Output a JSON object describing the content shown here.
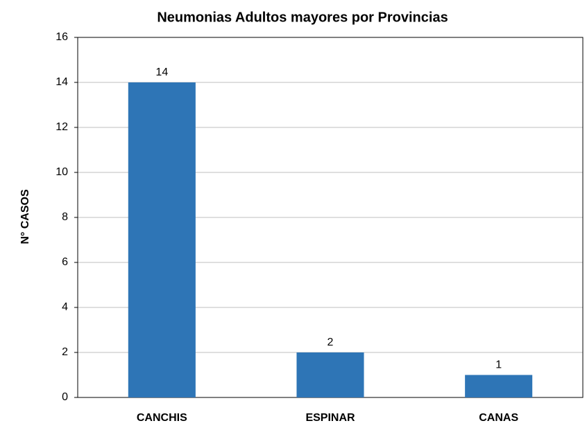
{
  "chart_data": {
    "type": "bar",
    "title": "Neumonias Adultos mayores por Provincias",
    "y_label": "N° CASOS",
    "categories": [
      "CANCHIS",
      "ESPINAR",
      "CANAS"
    ],
    "values": [
      14,
      2,
      1
    ],
    "color": "#2e75b6",
    "ylim": [
      0,
      16
    ],
    "yticks": [
      0,
      2,
      4,
      6,
      8,
      10,
      12,
      14,
      16
    ],
    "grid": true
  }
}
